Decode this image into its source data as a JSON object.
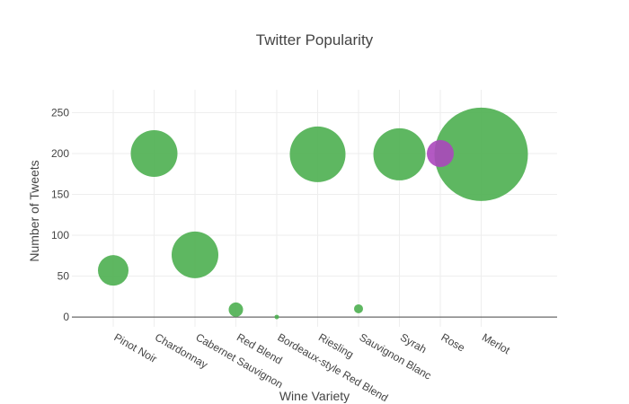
{
  "chart_data": {
    "type": "scatter",
    "title": "Twitter Popularity",
    "xlabel": "Wine Variety",
    "ylabel": "Number of Tweets",
    "ylim": [
      -12,
      278
    ],
    "yticks": [
      0,
      50,
      100,
      150,
      200,
      250
    ],
    "grid": true,
    "categories": [
      "Pinot Noir",
      "Chardonnay",
      "Cabernet Sauvignon",
      "Red Blend",
      "Bordeaux-style Red Blend",
      "Riesling",
      "Sauvignon Blanc",
      "Syrah",
      "Rose",
      "Merlot"
    ],
    "series": [
      {
        "color": "#4caf50",
        "points": [
          {
            "x": "Pinot Noir",
            "y": 57,
            "size": 34
          },
          {
            "x": "Chardonnay",
            "y": 200,
            "size": 52
          },
          {
            "x": "Cabernet Sauvignon",
            "y": 76,
            "size": 52
          },
          {
            "x": "Red Blend",
            "y": 9,
            "size": 16
          },
          {
            "x": "Bordeaux-style Red Blend",
            "y": 0,
            "size": 5
          },
          {
            "x": "Riesling",
            "y": 199,
            "size": 62
          },
          {
            "x": "Sauvignon Blanc",
            "y": 10,
            "size": 10
          },
          {
            "x": "Syrah",
            "y": 199,
            "size": 58
          },
          {
            "x": "Merlot",
            "y": 199,
            "size": 104
          }
        ]
      },
      {
        "color": "#ab47bc",
        "points": [
          {
            "x": "Rose",
            "y": 200,
            "size": 30
          }
        ]
      }
    ]
  }
}
